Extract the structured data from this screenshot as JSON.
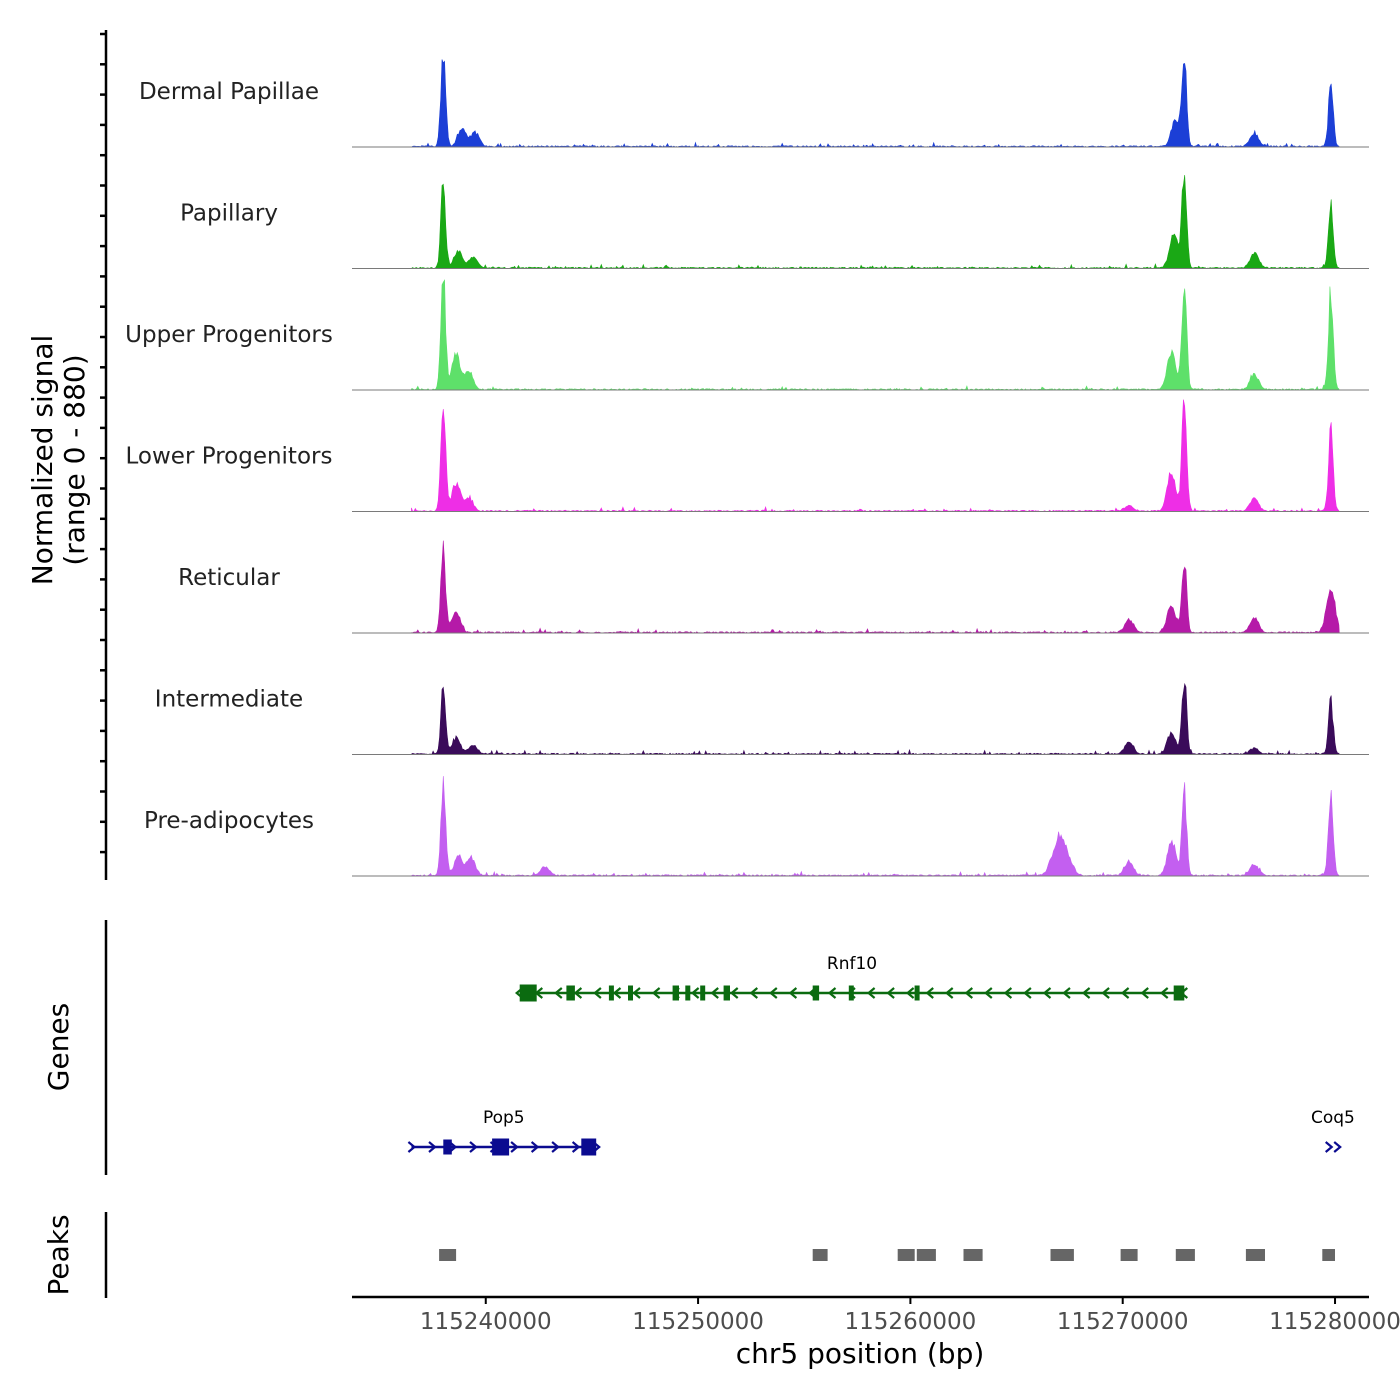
{
  "chart_data": {
    "type": "area",
    "xlabel": "chr5 position (bp)",
    "ylabel": "Normalized signal",
    "ylabel_range": "(range 0 - 880)",
    "xlim": [
      115233700,
      115281600
    ],
    "xticks": [
      115240000,
      115250000,
      115260000,
      115270000,
      115280000
    ],
    "xtick_labels": [
      "115240000",
      "115250000",
      "115260000",
      "115270000",
      "115280000"
    ],
    "signal_max": 880,
    "tracks": [
      {
        "name": "Dermal Papillae",
        "color": "#1c3fd6",
        "peaks": [
          [
            115238000,
            0.86
          ],
          [
            115272900,
            0.8
          ],
          [
            115279800,
            0.56
          ],
          [
            115276200,
            0.12
          ],
          [
            115272500,
            0.25
          ],
          [
            115238900,
            0.15
          ],
          [
            115239500,
            0.12
          ]
        ]
      },
      {
        "name": "Papillary",
        "color": "#1aa815",
        "peaks": [
          [
            115238000,
            0.75
          ],
          [
            115272900,
            0.88
          ],
          [
            115279800,
            0.55
          ],
          [
            115276200,
            0.13
          ],
          [
            115272400,
            0.3
          ],
          [
            115238700,
            0.15
          ],
          [
            115239400,
            0.1
          ]
        ]
      },
      {
        "name": "Upper Progenitors",
        "color": "#5ee06a",
        "peaks": [
          [
            115238000,
            1.0
          ],
          [
            115272900,
            1.0
          ],
          [
            115279800,
            0.88
          ],
          [
            115276200,
            0.14
          ],
          [
            115272300,
            0.35
          ],
          [
            115238600,
            0.3
          ],
          [
            115239200,
            0.16
          ]
        ]
      },
      {
        "name": "Lower Progenitors",
        "color": "#ee2ee6",
        "peaks": [
          [
            115238000,
            1.0
          ],
          [
            115272900,
            1.0
          ],
          [
            115279800,
            0.7
          ],
          [
            115276200,
            0.11
          ],
          [
            115272300,
            0.35
          ],
          [
            115238600,
            0.25
          ],
          [
            115239200,
            0.12
          ],
          [
            115270300,
            0.05
          ]
        ]
      },
      {
        "name": "Reticular",
        "color": "#b51aa8",
        "peaks": [
          [
            115238000,
            0.73
          ],
          [
            115272900,
            0.63
          ],
          [
            115279800,
            0.4
          ],
          [
            115276200,
            0.13
          ],
          [
            115270300,
            0.12
          ],
          [
            115272300,
            0.25
          ],
          [
            115238600,
            0.18
          ]
        ]
      },
      {
        "name": "Intermediate",
        "color": "#3a0b5a",
        "peaks": [
          [
            115238000,
            0.62
          ],
          [
            115272900,
            0.67
          ],
          [
            115279800,
            0.46
          ],
          [
            115276200,
            0.05
          ],
          [
            115270300,
            0.11
          ],
          [
            115272300,
            0.2
          ],
          [
            115238600,
            0.14
          ],
          [
            115239400,
            0.08
          ]
        ]
      },
      {
        "name": "Pre-adipocytes",
        "color": "#c35ff0",
        "peaks": [
          [
            115238000,
            0.81
          ],
          [
            115272900,
            0.74
          ],
          [
            115279800,
            0.74
          ],
          [
            115276200,
            0.1
          ],
          [
            115267100,
            0.35
          ],
          [
            115266700,
            0.15
          ],
          [
            115267500,
            0.12
          ],
          [
            115270300,
            0.12
          ],
          [
            115272300,
            0.3
          ],
          [
            115239300,
            0.16
          ],
          [
            115238700,
            0.16
          ],
          [
            115242800,
            0.08
          ]
        ]
      }
    ],
    "genes_title": "Genes",
    "genes": [
      {
        "name": "Rnf10",
        "strand": "-",
        "color": "#0b6b10",
        "start": 115241600,
        "end": 115272900,
        "exons": [
          [
            115241600,
            115242400
          ],
          [
            115243800,
            115244200
          ],
          [
            115245800,
            115246000
          ],
          [
            115246700,
            115246900
          ],
          [
            115248800,
            115249100
          ],
          [
            115249400,
            115249600
          ],
          [
            115250100,
            115250300
          ],
          [
            115251200,
            115251500
          ],
          [
            115255400,
            115255700
          ],
          [
            115257100,
            115257300
          ],
          [
            115260200,
            115260400
          ],
          [
            115272400,
            115272900
          ]
        ]
      },
      {
        "name": "Pop5",
        "strand": "+",
        "color": "#0b0b90",
        "start": 115236500,
        "end": 115245200,
        "exons": [
          [
            115238000,
            115238400
          ],
          [
            115240300,
            115241100
          ],
          [
            115244500,
            115245200
          ]
        ]
      },
      {
        "name": "Coq5",
        "strand": "+",
        "color": "#0b0b90",
        "start": 115279700,
        "end": 115280100,
        "exons": []
      }
    ],
    "peaks_title": "Peaks",
    "peak_regions": [
      [
        115237800,
        115238600
      ],
      [
        115255400,
        115256100
      ],
      [
        115259400,
        115260200
      ],
      [
        115260300,
        115261200
      ],
      [
        115262500,
        115263400
      ],
      [
        115266600,
        115267700
      ],
      [
        115269900,
        115270700
      ],
      [
        115272500,
        115273400
      ],
      [
        115275800,
        115276700
      ],
      [
        115279400,
        115280000
      ]
    ]
  }
}
